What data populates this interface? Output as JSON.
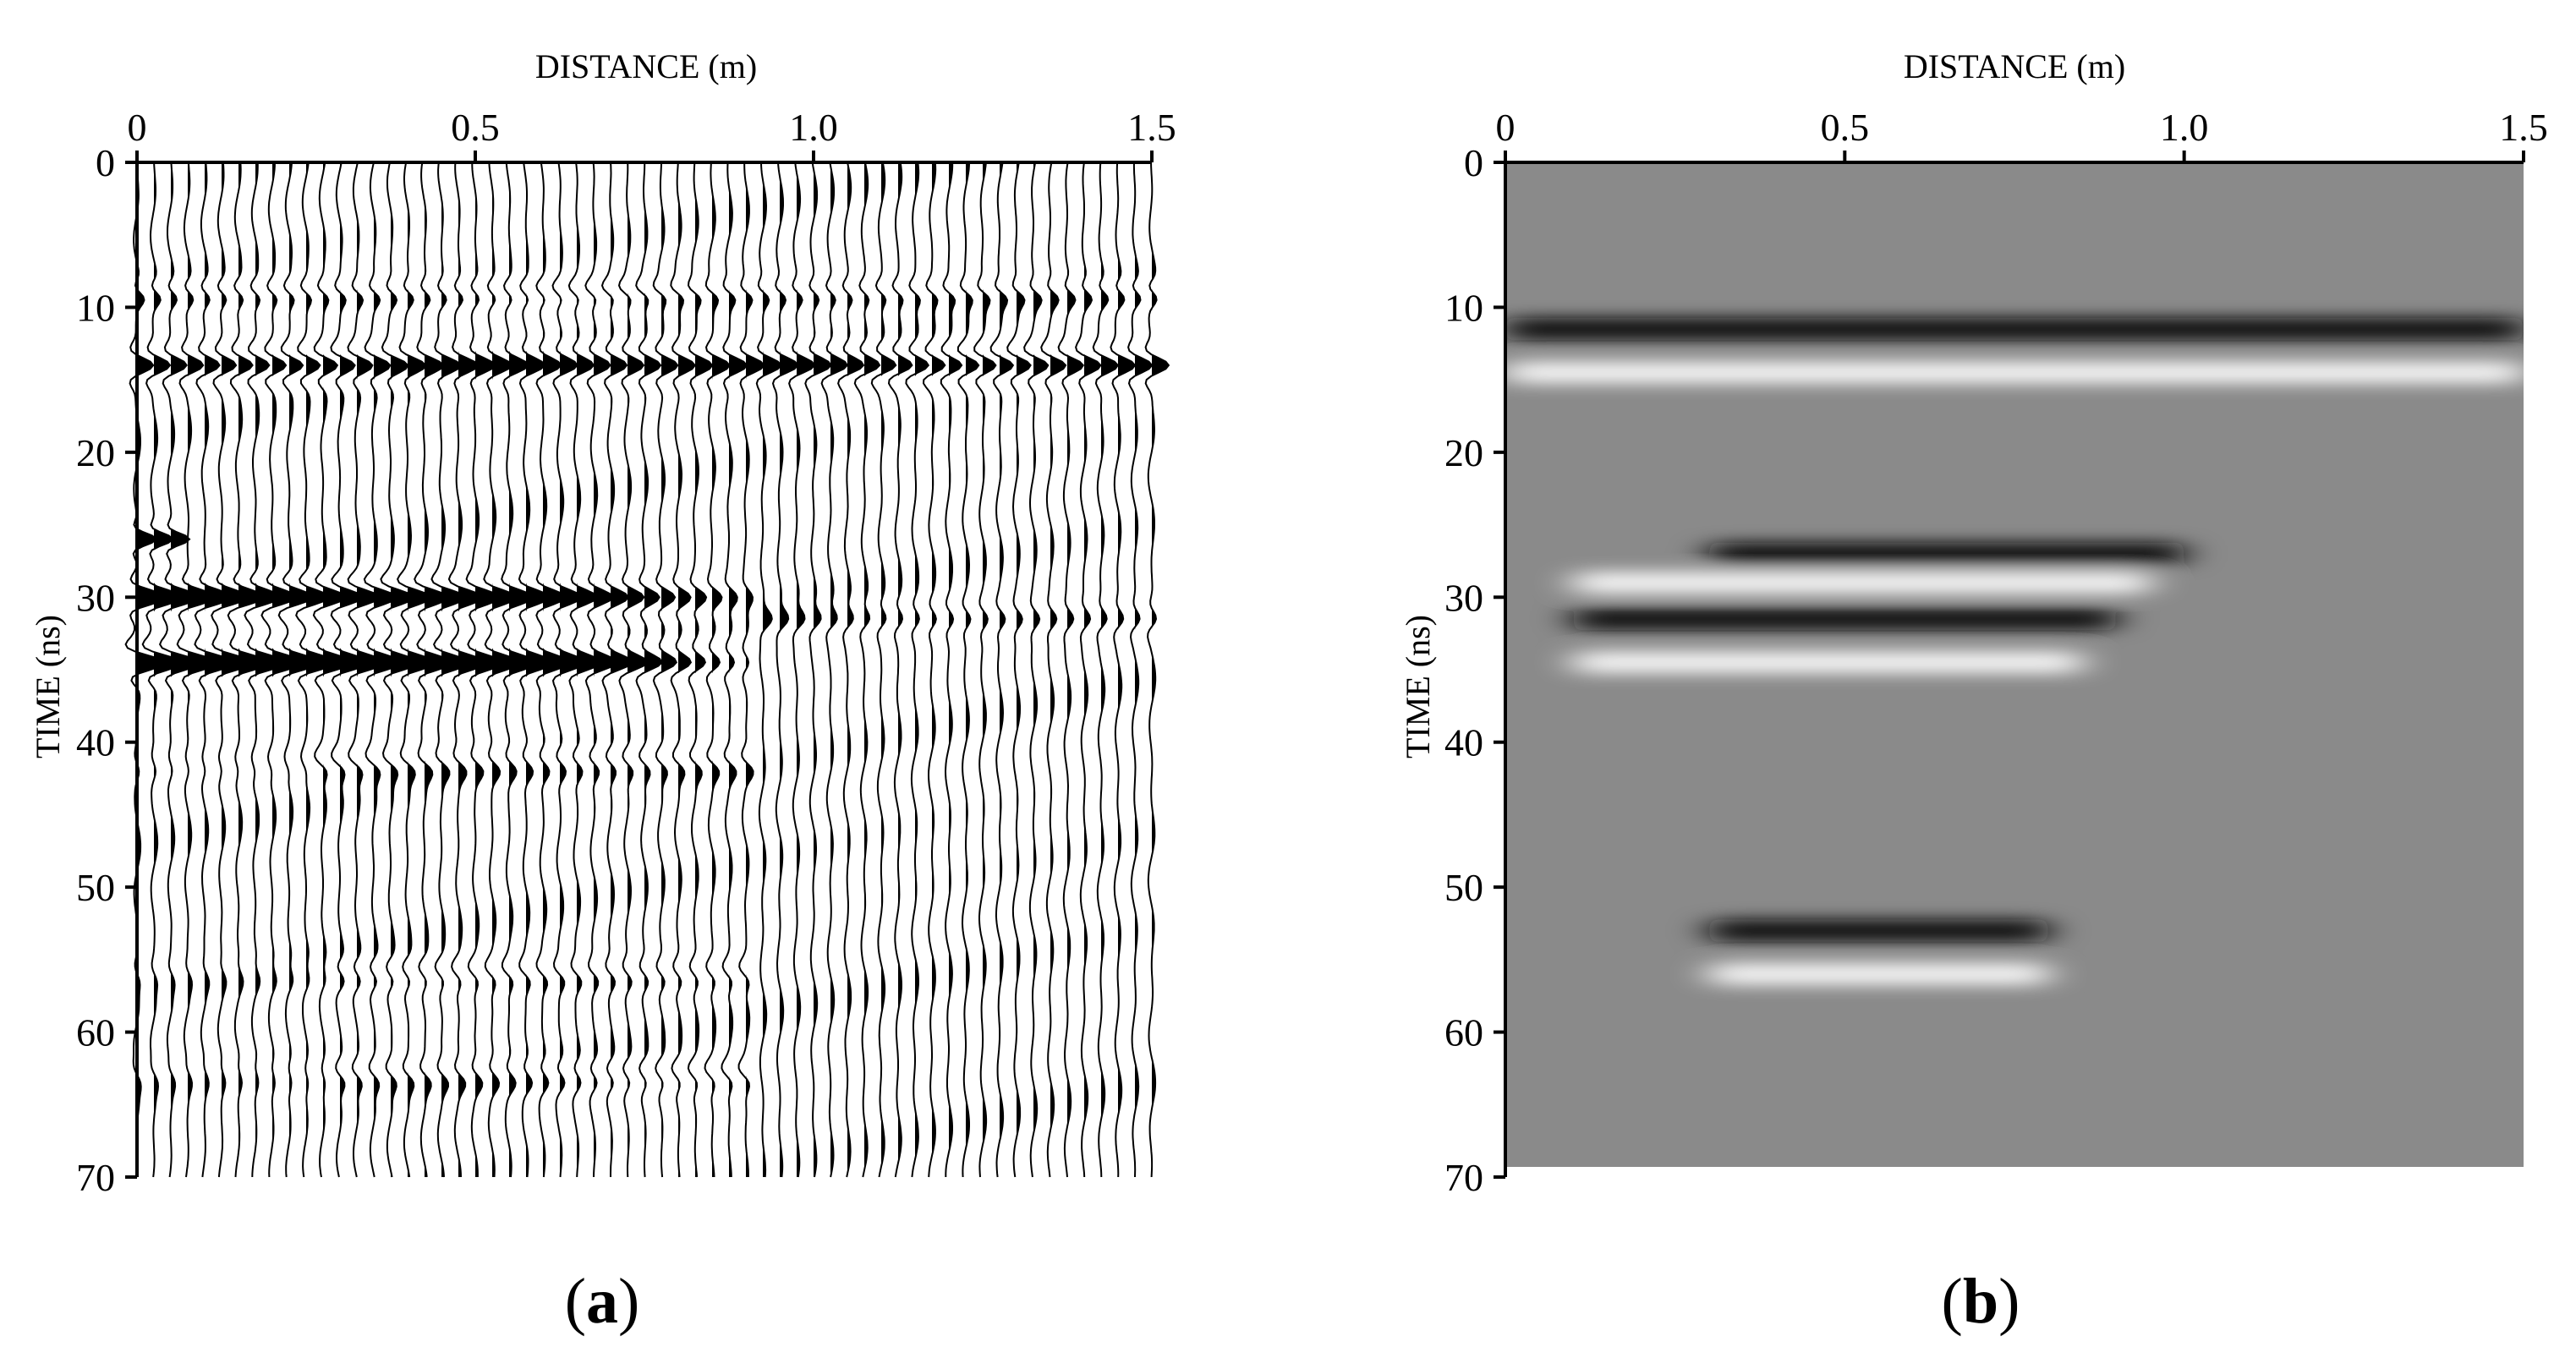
{
  "figure": {
    "panels": [
      {
        "id": "a",
        "label_open": "(",
        "label_letter": "a",
        "label_close": ")"
      },
      {
        "id": "b",
        "label_open": "(",
        "label_letter": "b",
        "label_close": ")"
      }
    ]
  },
  "chart_data": [
    {
      "type": "wiggle",
      "panel": "a",
      "xlabel": "DISTANCE (m)",
      "ylabel": "TIME (ns)",
      "xlim": [
        0,
        1.5
      ],
      "ylim": [
        0,
        70
      ],
      "y_inverted": true,
      "x_axis_position": "top",
      "x_ticks": [
        "0",
        "0.5",
        "1.0",
        "1.5"
      ],
      "x_tick_values": [
        0,
        0.5,
        1.0,
        1.5
      ],
      "y_ticks": [
        "0",
        "10",
        "20",
        "30",
        "40",
        "50",
        "60",
        "70"
      ],
      "y_tick_values": [
        0,
        10,
        20,
        30,
        40,
        50,
        60,
        70
      ],
      "trace_spacing_m": 0.025,
      "reflections": [
        {
          "name": "surface",
          "time_ns": [
            9,
            14
          ],
          "x_range_m": [
            0,
            1.5
          ],
          "strength": "strong"
        },
        {
          "name": "hyperbola apex",
          "time_ns": 30,
          "x_range_m": [
            0,
            0.9
          ],
          "strength": "strong"
        },
        {
          "name": "lower event",
          "time_ns": [
            34,
            42,
            56,
            63
          ],
          "x_range_m": [
            0.3,
            0.9
          ],
          "strength": "moderate"
        }
      ]
    },
    {
      "type": "heatmap",
      "panel": "b",
      "colormap": "grayscale",
      "xlabel": "DISTANCE (m)",
      "ylabel": "TIME (ns)",
      "xlim": [
        0,
        1.5
      ],
      "ylim": [
        0,
        70
      ],
      "y_inverted": true,
      "x_axis_position": "top",
      "x_ticks": [
        "0",
        "0.5",
        "1.0",
        "1.5"
      ],
      "x_tick_values": [
        0,
        0.5,
        1.0,
        1.5
      ],
      "y_ticks": [
        "0",
        "10",
        "20",
        "30",
        "40",
        "50",
        "60",
        "70"
      ],
      "y_tick_values": [
        0,
        10,
        20,
        30,
        40,
        50,
        60,
        70
      ],
      "bands": [
        {
          "time_ns": 11.5,
          "x_range_m": [
            0,
            1.5
          ],
          "tone": "dark"
        },
        {
          "time_ns": 14.5,
          "x_range_m": [
            0,
            1.5
          ],
          "tone": "light"
        },
        {
          "time_ns": 27,
          "x_range_m": [
            0.3,
            1.0
          ],
          "tone": "dark"
        },
        {
          "time_ns": 29,
          "x_range_m": [
            0.1,
            0.95
          ],
          "tone": "light"
        },
        {
          "time_ns": 31.5,
          "x_range_m": [
            0.1,
            0.9
          ],
          "tone": "dark"
        },
        {
          "time_ns": 34.5,
          "x_range_m": [
            0.1,
            0.85
          ],
          "tone": "light"
        },
        {
          "time_ns": 53,
          "x_range_m": [
            0.3,
            0.8
          ],
          "tone": "dark"
        },
        {
          "time_ns": 56,
          "x_range_m": [
            0.3,
            0.8
          ],
          "tone": "light"
        }
      ]
    }
  ]
}
